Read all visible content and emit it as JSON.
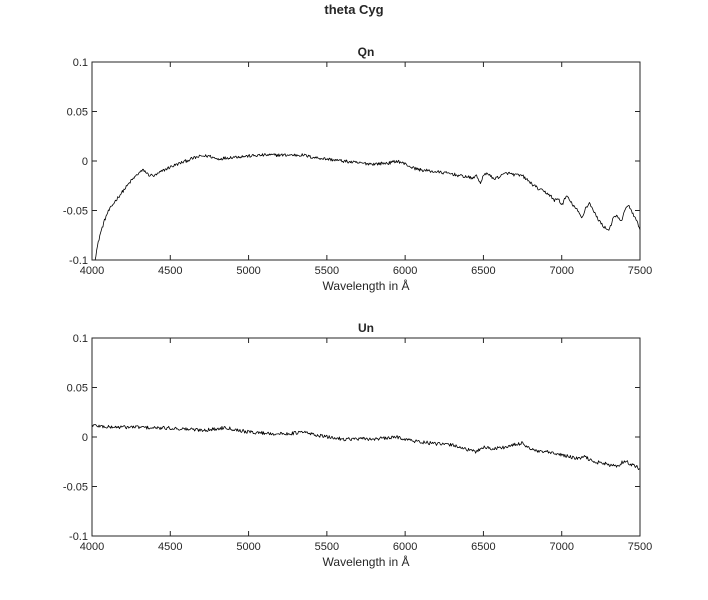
{
  "figure": {
    "title": "theta Cyg"
  },
  "chart_data": [
    {
      "type": "line",
      "title": "Qn",
      "xlabel": "Wavelength in Å",
      "ylabel": "",
      "xlim": [
        4000,
        7500
      ],
      "ylim": [
        -0.1,
        0.1
      ],
      "xticks": [
        4000,
        4500,
        5000,
        5500,
        6000,
        6500,
        7000,
        7500
      ],
      "yticks": [
        -0.1,
        -0.05,
        0,
        0.05,
        0.1
      ],
      "xtick_labels": [
        "4000",
        "4500",
        "5000",
        "5500",
        "6000",
        "6500",
        "7000",
        "7500"
      ],
      "ytick_labels": [
        "-0.1",
        "-0.05",
        "0",
        "0.05",
        "0.1"
      ],
      "grid": false,
      "series": [
        {
          "x": [
            4020,
            4030,
            4050,
            4080,
            4100,
            4150,
            4200,
            4250,
            4300,
            4330,
            4360,
            4400,
            4450,
            4500,
            4550,
            4600,
            4650,
            4700,
            4750,
            4800,
            4850,
            4900,
            5000,
            5100,
            5200,
            5300,
            5350,
            5400,
            5500,
            5600,
            5700,
            5800,
            5900,
            5950,
            6000,
            6050,
            6100,
            6150,
            6200,
            6250,
            6300,
            6350,
            6400,
            6430,
            6450,
            6480,
            6500,
            6530,
            6560,
            6600,
            6650,
            6700,
            6750,
            6800,
            6850,
            6900,
            6930,
            6950,
            6980,
            7000,
            7030,
            7060,
            7100,
            7130,
            7150,
            7180,
            7200,
            7230,
            7260,
            7300,
            7330,
            7350,
            7380,
            7400,
            7430,
            7460,
            7500
          ],
          "y": [
            -0.099,
            -0.09,
            -0.075,
            -0.06,
            -0.052,
            -0.04,
            -0.03,
            -0.02,
            -0.012,
            -0.009,
            -0.014,
            -0.015,
            -0.01,
            -0.006,
            -0.003,
            0.0,
            0.003,
            0.005,
            0.005,
            0.002,
            0.003,
            0.004,
            0.005,
            0.006,
            0.006,
            0.006,
            0.006,
            0.004,
            0.002,
            0.0,
            -0.002,
            -0.003,
            -0.002,
            0.0,
            -0.003,
            -0.007,
            -0.009,
            -0.01,
            -0.011,
            -0.012,
            -0.013,
            -0.015,
            -0.016,
            -0.018,
            -0.014,
            -0.022,
            -0.015,
            -0.012,
            -0.018,
            -0.016,
            -0.012,
            -0.014,
            -0.015,
            -0.022,
            -0.028,
            -0.032,
            -0.035,
            -0.04,
            -0.038,
            -0.045,
            -0.035,
            -0.042,
            -0.05,
            -0.058,
            -0.048,
            -0.042,
            -0.05,
            -0.058,
            -0.065,
            -0.07,
            -0.058,
            -0.055,
            -0.062,
            -0.05,
            -0.045,
            -0.055,
            -0.068
          ],
          "noise": 0.0016
        }
      ]
    },
    {
      "type": "line",
      "title": "Un",
      "xlabel": "Wavelength in Å",
      "ylabel": "",
      "xlim": [
        4000,
        7500
      ],
      "ylim": [
        -0.1,
        0.1
      ],
      "xticks": [
        4000,
        4500,
        5000,
        5500,
        6000,
        6500,
        7000,
        7500
      ],
      "yticks": [
        -0.1,
        -0.05,
        0,
        0.05,
        0.1
      ],
      "xtick_labels": [
        "4000",
        "4500",
        "5000",
        "5500",
        "6000",
        "6500",
        "7000",
        "7500"
      ],
      "ytick_labels": [
        "-0.1",
        "-0.05",
        "0",
        "0.05",
        "0.1"
      ],
      "grid": false,
      "series": [
        {
          "x": [
            4000,
            4100,
            4200,
            4300,
            4400,
            4500,
            4600,
            4700,
            4800,
            4850,
            4900,
            5000,
            5100,
            5200,
            5300,
            5350,
            5400,
            5500,
            5600,
            5700,
            5800,
            5900,
            5950,
            6000,
            6050,
            6100,
            6200,
            6300,
            6350,
            6400,
            6450,
            6500,
            6550,
            6600,
            6650,
            6700,
            6750,
            6800,
            6850,
            6900,
            6950,
            7000,
            7050,
            7100,
            7150,
            7200,
            7250,
            7300,
            7350,
            7400,
            7450,
            7500
          ],
          "y": [
            0.012,
            0.01,
            0.01,
            0.01,
            0.009,
            0.009,
            0.008,
            0.007,
            0.008,
            0.01,
            0.008,
            0.005,
            0.004,
            0.003,
            0.004,
            0.005,
            0.003,
            0.0,
            -0.002,
            -0.002,
            -0.002,
            -0.001,
            0.0,
            -0.002,
            -0.004,
            -0.005,
            -0.007,
            -0.008,
            -0.01,
            -0.013,
            -0.015,
            -0.01,
            -0.012,
            -0.011,
            -0.01,
            -0.008,
            -0.006,
            -0.012,
            -0.015,
            -0.015,
            -0.017,
            -0.018,
            -0.02,
            -0.022,
            -0.02,
            -0.025,
            -0.026,
            -0.028,
            -0.03,
            -0.024,
            -0.028,
            -0.032
          ],
          "noise": 0.0018
        }
      ]
    }
  ]
}
